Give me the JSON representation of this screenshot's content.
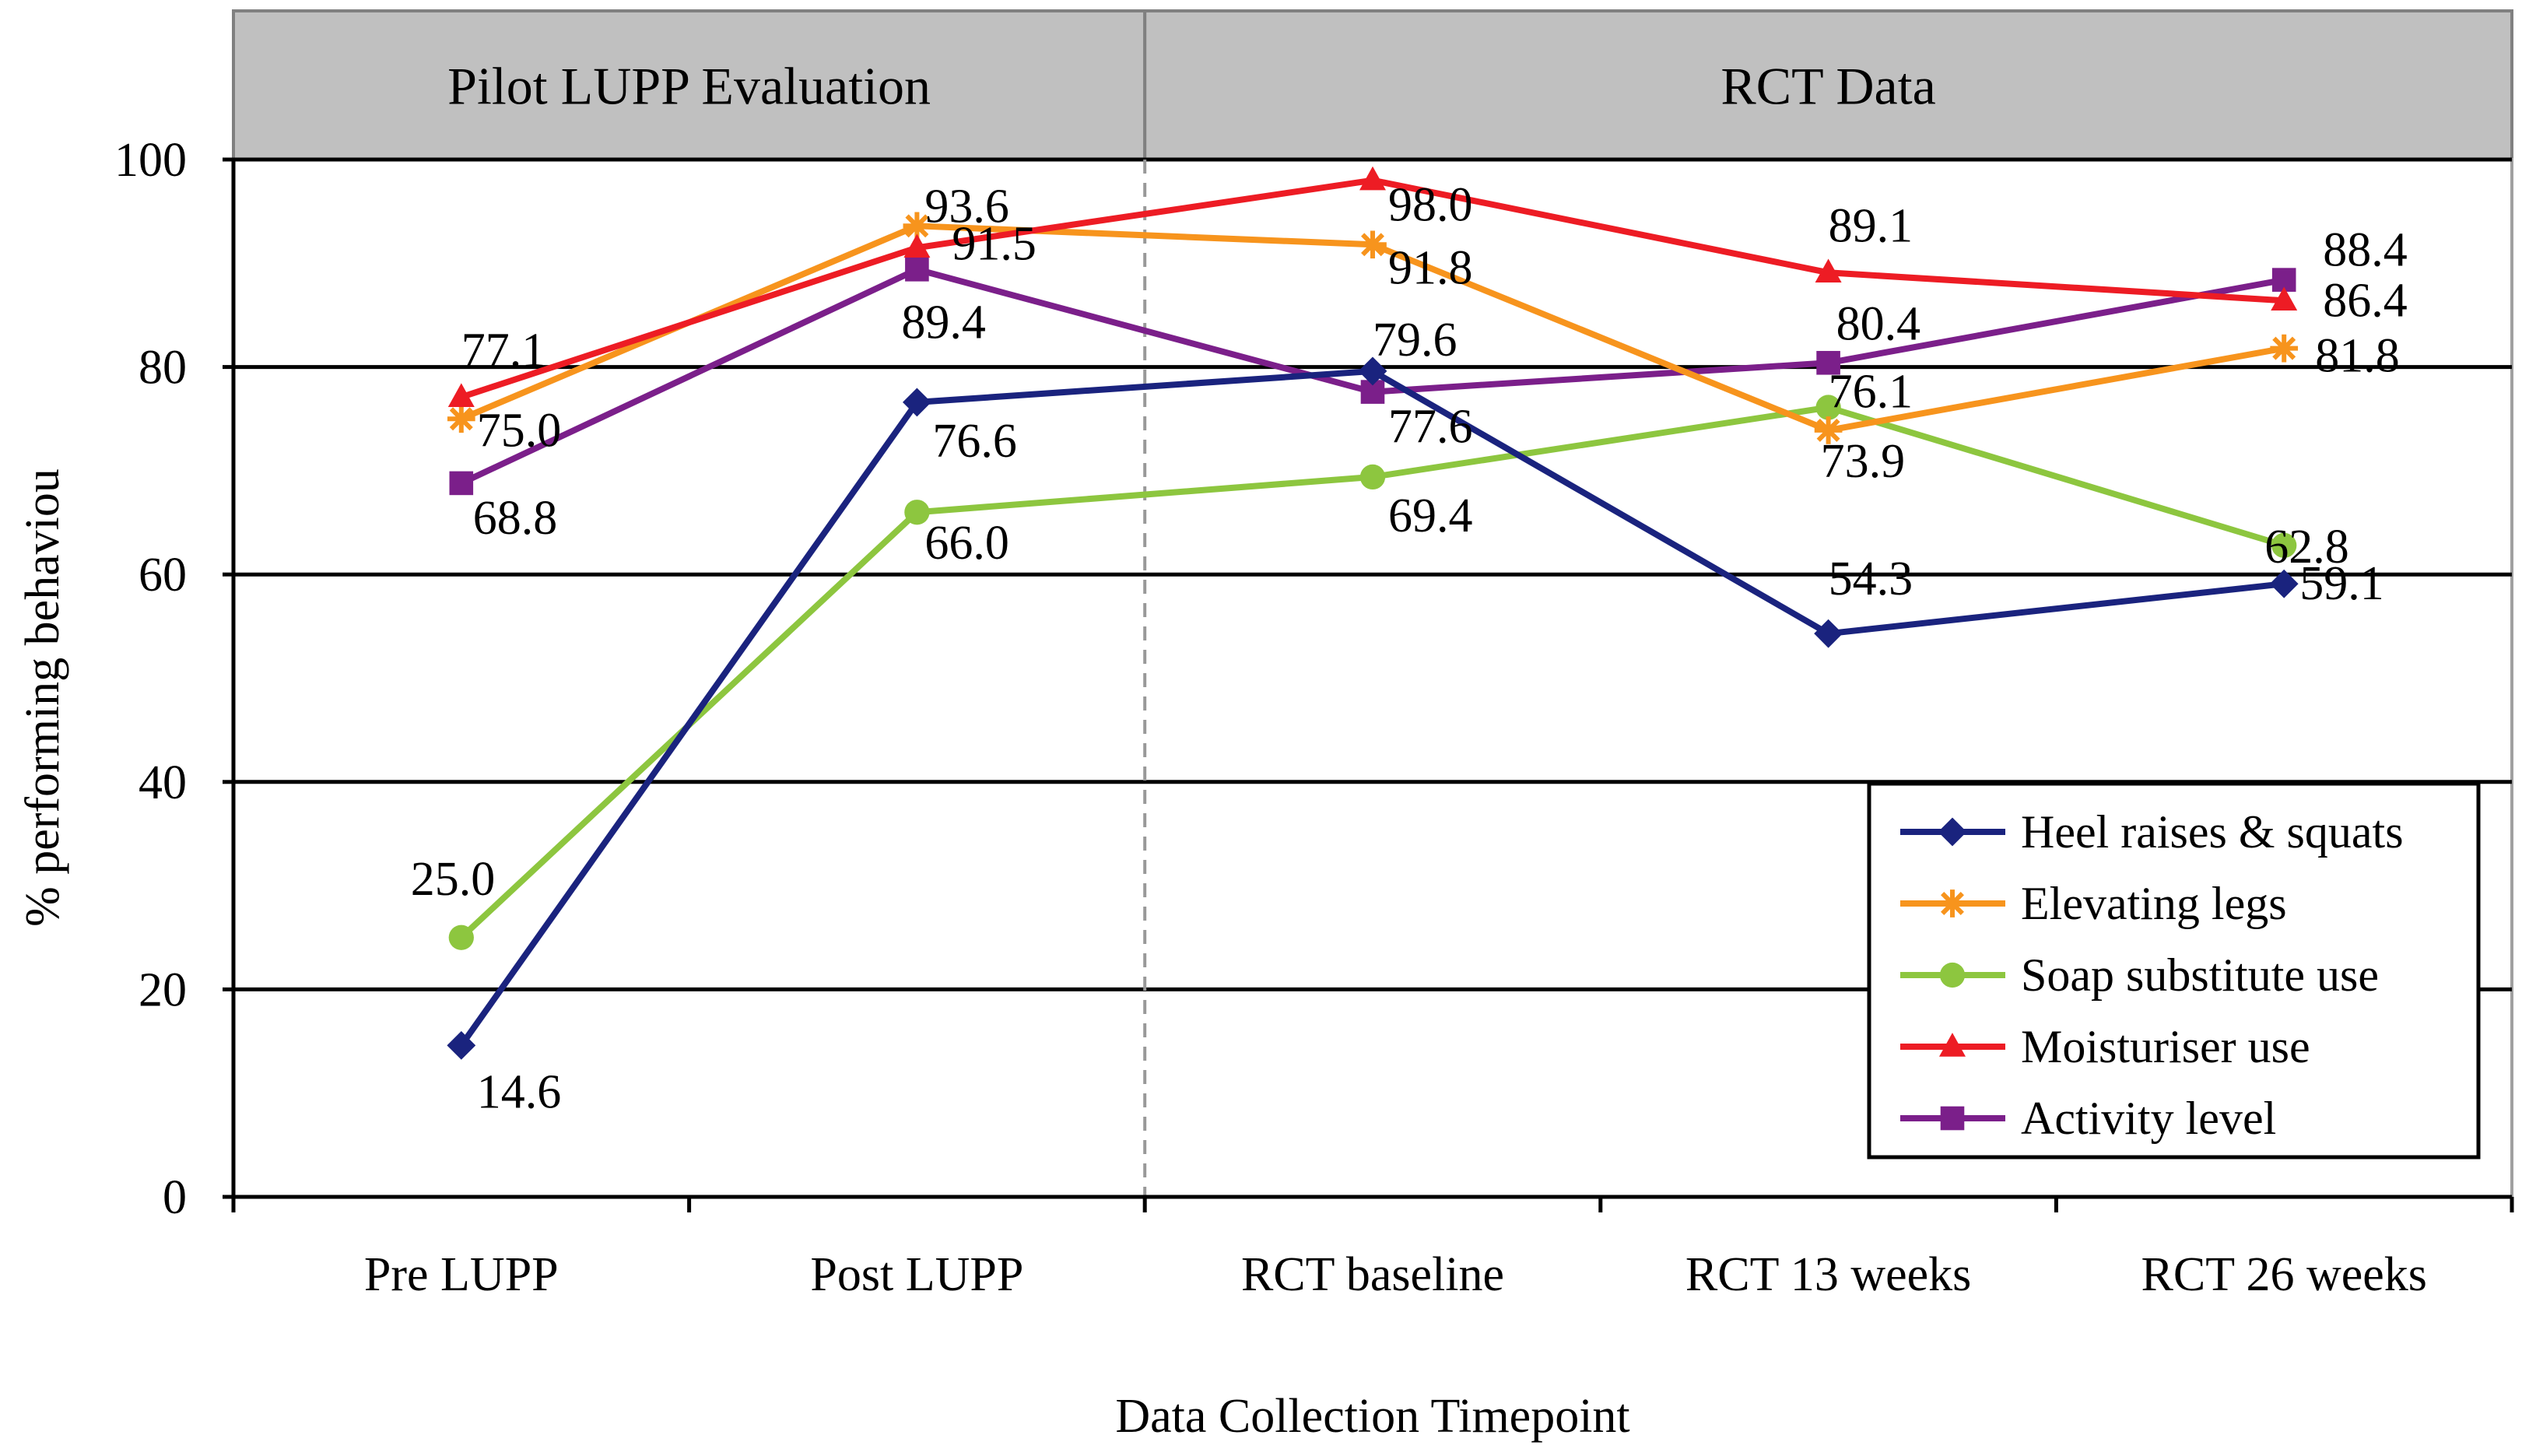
{
  "chart_data": {
    "type": "line",
    "title": "",
    "xlabel": "Data Collection Timepoint",
    "ylabel": "% performing behaviou",
    "ylim": [
      0,
      100
    ],
    "yticks": [
      0,
      20,
      40,
      60,
      80,
      100
    ],
    "grid": "horizontal",
    "legend_position": "bottom-right",
    "groups": [
      {
        "label": "Pilot LUPP Evaluation",
        "span": [
          0,
          1
        ]
      },
      {
        "label": "RCT Data",
        "span": [
          2,
          4
        ]
      }
    ],
    "categories": [
      "Pre LUPP",
      "Post LUPP",
      "RCT baseline",
      "RCT 13 weeks",
      "RCT 26 weeks"
    ],
    "series": [
      {
        "name": "Heel raises & squats",
        "color": "#1a237e",
        "marker": "diamond",
        "values": [
          14.6,
          76.6,
          79.6,
          54.3,
          59.1
        ],
        "labels": [
          "14.6",
          "76.6",
          "79.6",
          "54.3",
          "59.1"
        ]
      },
      {
        "name": "Elevating legs",
        "color": "#f7941d",
        "marker": "asterisk",
        "values": [
          75.0,
          93.6,
          91.8,
          73.9,
          81.8
        ],
        "labels": [
          "75.0",
          "93.6",
          "91.8",
          "73.9",
          "81.8"
        ]
      },
      {
        "name": "Soap substitute use",
        "color": "#8dc63f",
        "marker": "circle",
        "values": [
          25.0,
          66.0,
          69.4,
          76.1,
          62.8
        ],
        "labels": [
          "25.0",
          "66.0",
          "69.4",
          "76.1",
          "62.8"
        ]
      },
      {
        "name": "Moisturiser use",
        "color": "#ed1c24",
        "marker": "triangle",
        "values": [
          77.1,
          91.5,
          98.0,
          89.1,
          86.4
        ],
        "labels": [
          "77.1",
          "91.5",
          "98.0",
          "89.1",
          "86.4"
        ]
      },
      {
        "name": "Activity level",
        "color": "#7b1f8a",
        "marker": "square",
        "values": [
          68.8,
          89.4,
          77.6,
          80.4,
          88.4
        ],
        "labels": [
          "68.8",
          "89.4",
          "77.6",
          "80.4",
          "88.4"
        ]
      }
    ]
  }
}
